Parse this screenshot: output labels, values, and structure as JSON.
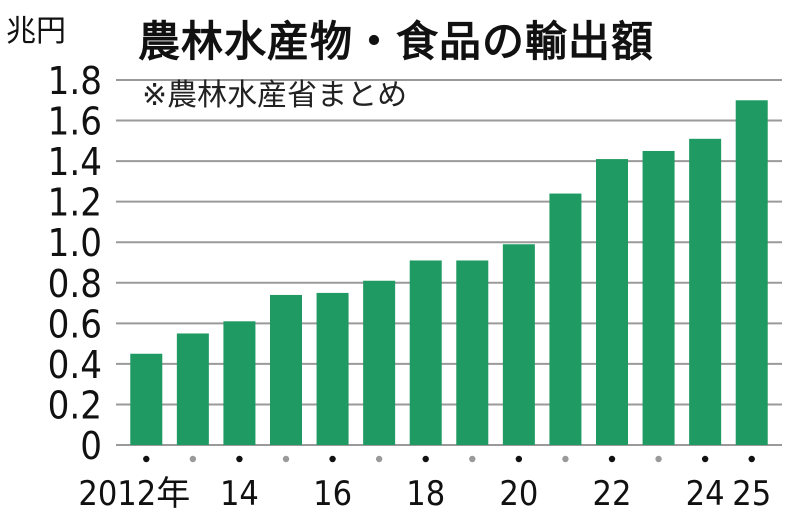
{
  "chart_data": {
    "type": "bar",
    "title": "農林水産物・食品の輸出額",
    "subtitle": "※農林水産省まとめ",
    "unit_label": "兆円",
    "ylim": [
      0,
      1.8
    ],
    "y_ticks": [
      "0",
      "0.2",
      "0.4",
      "0.6",
      "0.8",
      "1.0",
      "1.2",
      "1.4",
      "1.6",
      "1.8"
    ],
    "grid": true,
    "categories": [
      "2012",
      "2013",
      "2014",
      "2015",
      "2016",
      "2017",
      "2018",
      "2019",
      "2020",
      "2021",
      "2022",
      "2023",
      "2024",
      "2025"
    ],
    "x_tick_labels": [
      "2012年",
      "",
      "14",
      "",
      "16",
      "",
      "18",
      "",
      "20",
      "",
      "22",
      "",
      "24",
      "25"
    ],
    "values": [
      0.45,
      0.55,
      0.61,
      0.74,
      0.75,
      0.81,
      0.91,
      0.91,
      0.99,
      1.24,
      1.41,
      1.45,
      1.51,
      1.7
    ],
    "bar_color": "#1f9a62",
    "grid_color": "#9a9a9a",
    "dot_color_labeled": "#111111",
    "dot_color_unlabeled": "#9a9a9a"
  }
}
